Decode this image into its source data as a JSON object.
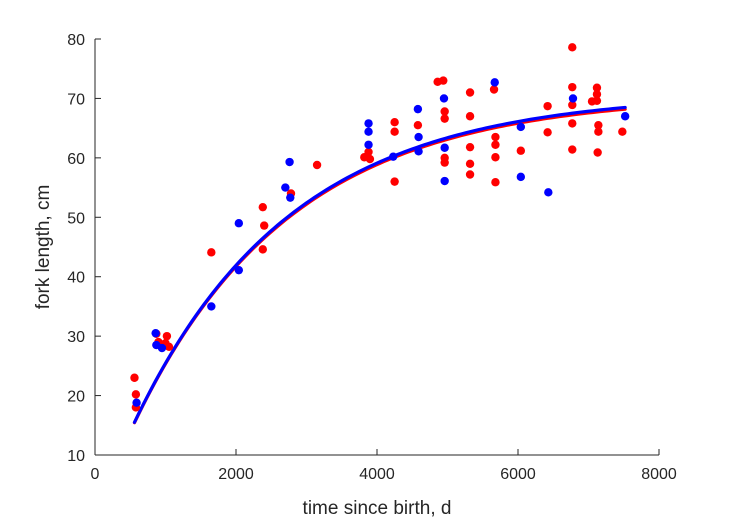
{
  "chart_data": {
    "type": "scatter",
    "title": "",
    "xlabel": "time since birth, d",
    "ylabel": "fork length, cm",
    "xlim": [
      0,
      8000
    ],
    "ylim": [
      10,
      80
    ],
    "xticks": [
      0,
      2000,
      4000,
      6000,
      8000
    ],
    "yticks": [
      10,
      20,
      30,
      40,
      50,
      60,
      70,
      80
    ],
    "xtick_labels": [
      "0",
      "2000",
      "4000",
      "6000",
      "8000"
    ],
    "ytick_labels": [
      "10",
      "20",
      "30",
      "40",
      "50",
      "60",
      "70",
      "80"
    ],
    "grid": false,
    "legend": "none",
    "series": [
      {
        "color": "#ff0000",
        "kind": "points",
        "points": [
          [
            560,
            23.0
          ],
          [
            580,
            20.2
          ],
          [
            580,
            18.0
          ],
          [
            870,
            30.4
          ],
          [
            900,
            29.0
          ],
          [
            1000,
            28.8
          ],
          [
            1020,
            30.0
          ],
          [
            1050,
            28.2
          ],
          [
            1650,
            44.1
          ],
          [
            2380,
            51.7
          ],
          [
            2380,
            44.6
          ],
          [
            2400,
            48.6
          ],
          [
            2780,
            54.0
          ],
          [
            3150,
            58.8
          ],
          [
            3820,
            60.1
          ],
          [
            3880,
            61.0
          ],
          [
            3900,
            59.8
          ],
          [
            4250,
            64.4
          ],
          [
            4250,
            66.0
          ],
          [
            4250,
            56.0
          ],
          [
            4580,
            65.5
          ],
          [
            4860,
            72.8
          ],
          [
            4940,
            73.0
          ],
          [
            4960,
            67.8
          ],
          [
            4960,
            66.6
          ],
          [
            4960,
            60.0
          ],
          [
            4960,
            59.2
          ],
          [
            5320,
            71.0
          ],
          [
            5320,
            67.0
          ],
          [
            5320,
            61.8
          ],
          [
            5320,
            59.0
          ],
          [
            5320,
            57.2
          ],
          [
            5660,
            71.5
          ],
          [
            5680,
            63.5
          ],
          [
            5680,
            62.2
          ],
          [
            5680,
            60.1
          ],
          [
            5680,
            55.9
          ],
          [
            6040,
            61.2
          ],
          [
            6420,
            68.7
          ],
          [
            6420,
            64.3
          ],
          [
            6770,
            78.6
          ],
          [
            6770,
            71.9
          ],
          [
            6770,
            68.9
          ],
          [
            6770,
            65.8
          ],
          [
            6770,
            61.4
          ],
          [
            7050,
            69.5
          ],
          [
            7120,
            71.8
          ],
          [
            7120,
            70.7
          ],
          [
            7120,
            69.6
          ],
          [
            7140,
            65.5
          ],
          [
            7140,
            64.4
          ],
          [
            7130,
            60.9
          ],
          [
            7480,
            64.4
          ]
        ]
      },
      {
        "color": "#0000ff",
        "kind": "points",
        "points": [
          [
            590,
            18.8
          ],
          [
            860,
            30.5
          ],
          [
            870,
            28.5
          ],
          [
            950,
            28.0
          ],
          [
            1650,
            35.0
          ],
          [
            2040,
            49.0
          ],
          [
            2040,
            41.1
          ],
          [
            2700,
            55.0
          ],
          [
            2760,
            59.3
          ],
          [
            2770,
            53.3
          ],
          [
            3880,
            65.8
          ],
          [
            3880,
            64.4
          ],
          [
            3880,
            62.2
          ],
          [
            4230,
            60.2
          ],
          [
            4580,
            68.2
          ],
          [
            4590,
            63.5
          ],
          [
            4590,
            61.1
          ],
          [
            4950,
            70.0
          ],
          [
            4960,
            61.7
          ],
          [
            4960,
            56.1
          ],
          [
            5670,
            72.7
          ],
          [
            6040,
            65.2
          ],
          [
            6040,
            56.8
          ],
          [
            6430,
            54.2
          ],
          [
            6780,
            70.0
          ],
          [
            7520,
            67.0
          ]
        ]
      },
      {
        "color": "#ff0000",
        "kind": "curve",
        "linf": 70.6,
        "k": 0.00045,
        "t0": 12
      },
      {
        "color": "#0000ff",
        "kind": "curve",
        "linf": 70.9,
        "k": 0.00045,
        "t0": 12
      }
    ]
  }
}
